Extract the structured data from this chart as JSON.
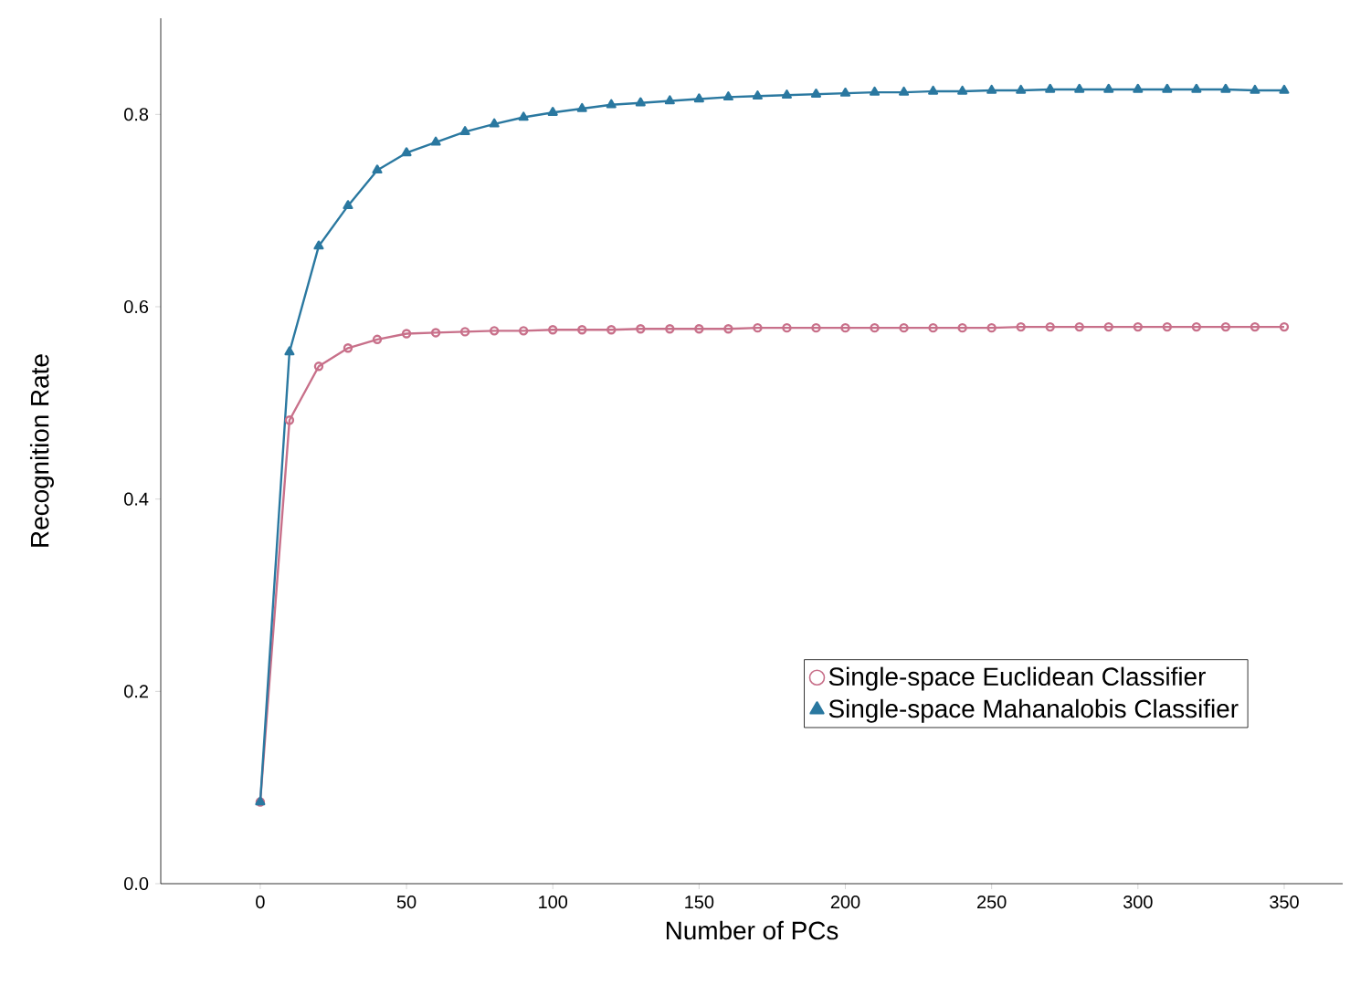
{
  "chart_data": {
    "type": "line",
    "xlabel": "Number of PCs",
    "ylabel": "Recognition Rate",
    "xlim": [
      -34,
      370
    ],
    "ylim": [
      0,
      0.9
    ],
    "xticks": [
      0,
      50,
      100,
      150,
      200,
      250,
      300,
      350
    ],
    "yticks": [
      {
        "value": 0,
        "label": "0.0"
      },
      {
        "value": 0.2,
        "label": "0.2"
      },
      {
        "value": 0.4,
        "label": "0.4"
      },
      {
        "value": 0.6,
        "label": "0.6"
      },
      {
        "value": 0.8,
        "label": "0.8"
      }
    ],
    "grid": false,
    "legend": "bottom right",
    "line_style": "solid",
    "series": [
      {
        "name": "Single-space Euclidean Classifier",
        "color": "#c8708a",
        "marker": "circle",
        "x": [
          0,
          10,
          20,
          30,
          40,
          50,
          60,
          70,
          80,
          90,
          100,
          110,
          120,
          130,
          140,
          150,
          160,
          170,
          180,
          190,
          200,
          210,
          220,
          230,
          240,
          250,
          260,
          270,
          280,
          290,
          300,
          310,
          320,
          330,
          340,
          350
        ],
        "values": [
          0.085,
          0.482,
          0.538,
          0.557,
          0.566,
          0.572,
          0.573,
          0.574,
          0.575,
          0.575,
          0.576,
          0.576,
          0.576,
          0.577,
          0.577,
          0.577,
          0.577,
          0.578,
          0.578,
          0.578,
          0.578,
          0.578,
          0.578,
          0.578,
          0.578,
          0.578,
          0.579,
          0.579,
          0.579,
          0.579,
          0.579,
          0.579,
          0.579,
          0.579,
          0.579,
          0.579
        ]
      },
      {
        "name": "Single-space Mahanalobis Classifier",
        "color": "#2a78a0",
        "marker": "triangle",
        "x": [
          0,
          10,
          20,
          30,
          40,
          50,
          60,
          70,
          80,
          90,
          100,
          110,
          120,
          130,
          140,
          150,
          160,
          170,
          180,
          190,
          200,
          210,
          220,
          230,
          240,
          250,
          260,
          270,
          280,
          290,
          300,
          310,
          320,
          330,
          340,
          350
        ],
        "values": [
          0.085,
          0.553,
          0.663,
          0.705,
          0.742,
          0.76,
          0.771,
          0.782,
          0.79,
          0.797,
          0.802,
          0.806,
          0.81,
          0.812,
          0.814,
          0.816,
          0.818,
          0.819,
          0.82,
          0.821,
          0.822,
          0.823,
          0.823,
          0.824,
          0.824,
          0.825,
          0.825,
          0.826,
          0.826,
          0.826,
          0.826,
          0.826,
          0.826,
          0.826,
          0.825,
          0.825
        ]
      }
    ]
  }
}
